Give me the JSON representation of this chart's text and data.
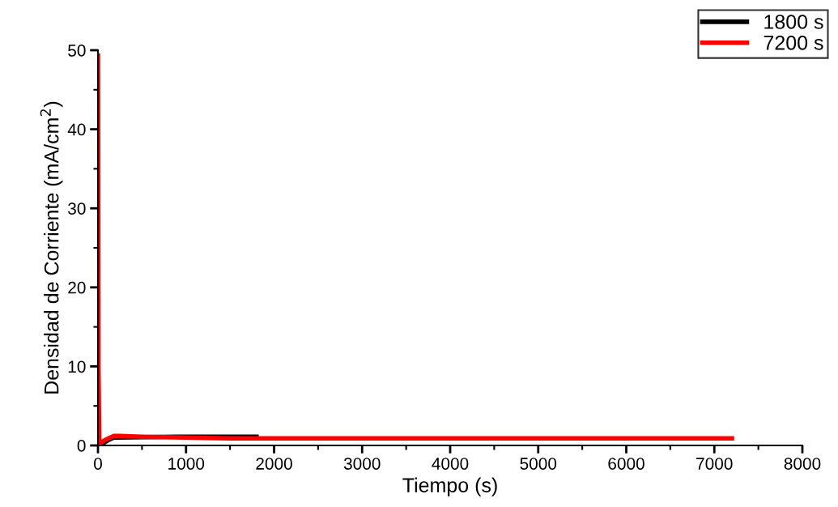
{
  "chart_data": {
    "type": "line",
    "xlabel": "Tiempo (s)",
    "ylabel": "Densidad de Corriente (mA/cm$^{2}$)",
    "xlim": [
      0,
      8000
    ],
    "ylim": [
      0,
      50
    ],
    "xticks": [
      0,
      1000,
      2000,
      3000,
      4000,
      5000,
      6000,
      7000,
      8000
    ],
    "yticks": [
      0,
      10,
      20,
      30,
      40,
      50
    ],
    "legend": "top right",
    "grid": false,
    "marker": "none",
    "line_style": "solid",
    "series": [
      {
        "name": "1800 s",
        "color": "#000000",
        "x": [
          20,
          60,
          120,
          180,
          900,
          1200,
          1500,
          1800
        ],
        "values": [
          0.1,
          0.3,
          0.7,
          1.0,
          1.1,
          1.1,
          1.1,
          1.1
        ]
      },
      {
        "name": "7200 s",
        "color": "#ff0000",
        "x": [
          0,
          5,
          15,
          40,
          100,
          180,
          250,
          500,
          1000,
          1500,
          2000,
          3000,
          4000,
          5000,
          6000,
          7000,
          7200
        ],
        "values": [
          49.3,
          10,
          0.3,
          0.4,
          0.8,
          1.2,
          1.2,
          1.1,
          1.0,
          0.9,
          0.9,
          0.9,
          0.9,
          0.9,
          0.9,
          0.9,
          0.9
        ]
      }
    ]
  }
}
